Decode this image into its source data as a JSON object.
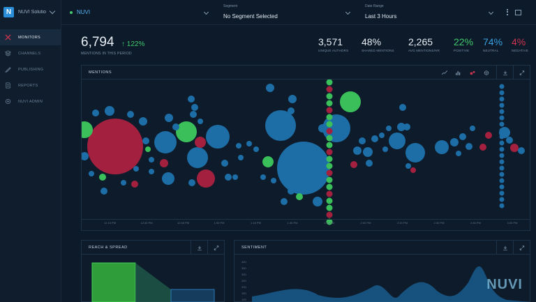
{
  "brand": {
    "logo_letter": "N",
    "name": "NUVI Solution..."
  },
  "nav": [
    {
      "label": "MONITORS",
      "icon": "monitors-icon",
      "active": true
    },
    {
      "label": "CHANNELS",
      "icon": "channels-icon",
      "active": false
    },
    {
      "label": "PUBLISHING",
      "icon": "publishing-icon",
      "active": false
    },
    {
      "label": "REPORTS",
      "icon": "reports-icon",
      "active": false
    },
    {
      "label": "NUVI ADMIN",
      "icon": "admin-icon",
      "active": false
    }
  ],
  "topbar": {
    "monitor": "NUVI",
    "segment_label": "Segment",
    "segment_value": "No Segment Selected",
    "date_label": "Date Range",
    "date_value": "Last 3 Hours"
  },
  "stats": {
    "mentions": "6,794",
    "mentions_delta": "↑ 122%",
    "mentions_caption": "MENTIONS IN THIS PERIOD",
    "unique_authors": "3,571",
    "unique_authors_caption": "UNIQUE AUTHORS",
    "shared_mentions": "48%",
    "shared_mentions_caption": "SHARED MENTIONS",
    "avg_mentions": "2,265",
    "avg_mentions_caption": "AVG MENTIONS/HR",
    "positive": "22%",
    "positive_caption": "POSITIVE",
    "neutral": "74%",
    "neutral_caption": "NEUTRAL",
    "negative": "4%",
    "negative_caption": "NEGATIVE"
  },
  "panels": {
    "mentions_title": "MENTIONS",
    "reach_title": "REACH & SPREAD",
    "sentiment_title": "SENTIMENT"
  },
  "colors": {
    "neutral": "#1d6ea6",
    "positive": "#3bbf5a",
    "negative": "#a3213f",
    "accent": "#3aa0e0"
  },
  "time_ticks": [
    "12:15 PM",
    "12:30 PM",
    "12:45 PM",
    "1:00 PM",
    "1:15 PM",
    "1:30 PM",
    "1:45 PM",
    "2:00 PM",
    "2:15 PM",
    "2:30 PM",
    "2:45 PM",
    "3:00 PM"
  ],
  "sentiment_yticks": [
    "400",
    "350",
    "300",
    "250",
    "200",
    "150",
    "100"
  ],
  "watermark": "NUVI"
}
